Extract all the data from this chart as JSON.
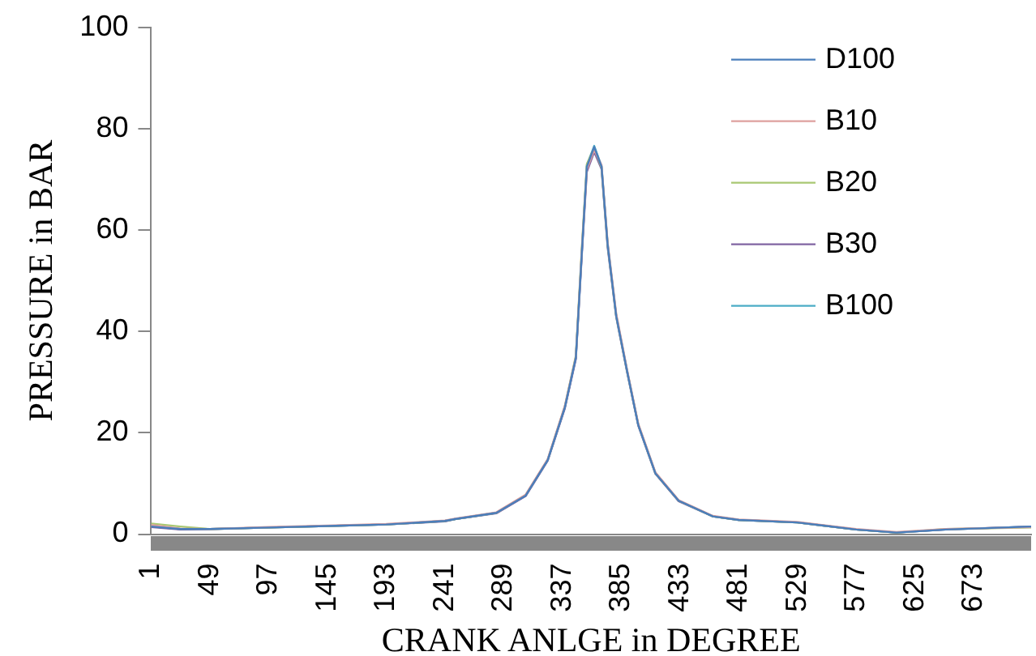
{
  "chart_data": {
    "type": "line",
    "xlabel": "CRANK ANLGE in DEGREE",
    "ylabel": "PRESSURE in BAR",
    "x": [
      1,
      25,
      49,
      97,
      145,
      193,
      241,
      250,
      283,
      307,
      325,
      339,
      348,
      353,
      357,
      363,
      369,
      374,
      381,
      390,
      399,
      413,
      432,
      460,
      481,
      529,
      577,
      610,
      650,
      720
    ],
    "series": [
      {
        "name": "D100",
        "color": "#4a7ebb",
        "values": [
          1.5,
          1.0,
          1.0,
          1.3,
          1.6,
          1.9,
          2.6,
          3.0,
          4.2,
          7.6,
          14.6,
          25,
          34.8,
          56,
          72.5,
          76.4,
          72.5,
          57,
          43,
          32,
          21.5,
          12,
          6.6,
          3.5,
          2.8,
          2.3,
          0.9,
          0.3,
          0.9,
          1.5
        ]
      },
      {
        "name": "B10",
        "color": "#dea09e",
        "values": [
          1.8,
          1.1,
          1.0,
          1.4,
          1.7,
          2.0,
          2.7,
          3.1,
          4.3,
          7.8,
          14.8,
          25.3,
          35,
          56.5,
          72,
          75.8,
          72.8,
          57.5,
          43.5,
          32.3,
          21.8,
          12.2,
          6.7,
          3.6,
          2.9,
          2.4,
          1.0,
          0.4,
          1.0,
          1.4
        ]
      },
      {
        "name": "B20",
        "color": "#a9c872",
        "values": [
          2.1,
          1.5,
          1.0,
          1.3,
          1.6,
          1.9,
          2.6,
          3.0,
          4.2,
          7.7,
          14.7,
          25.2,
          35.2,
          57,
          73,
          76.2,
          72.3,
          57,
          43,
          32,
          21.6,
          12,
          6.6,
          3.5,
          2.8,
          2.3,
          0.9,
          0.3,
          1.0,
          1.3
        ]
      },
      {
        "name": "B30",
        "color": "#8064a2",
        "values": [
          1.4,
          0.9,
          1.0,
          1.3,
          1.6,
          1.9,
          2.5,
          3.0,
          4.1,
          7.5,
          14.5,
          24.8,
          34.5,
          55.5,
          71.5,
          75.4,
          72,
          56.5,
          42.8,
          31.8,
          21.4,
          11.9,
          6.5,
          3.5,
          2.8,
          2.3,
          0.9,
          0.3,
          0.9,
          1.5
        ]
      },
      {
        "name": "B100",
        "color": "#4bacc6",
        "values": [
          1.5,
          1.0,
          1.0,
          1.3,
          1.6,
          1.9,
          2.6,
          3.0,
          4.2,
          7.6,
          14.6,
          25,
          34.8,
          56,
          72.8,
          76.6,
          72.6,
          57.2,
          43.2,
          32.1,
          21.6,
          12.1,
          6.6,
          3.5,
          2.8,
          2.3,
          0.9,
          0.3,
          0.9,
          1.5
        ]
      }
    ],
    "xlim": [
      1,
      720
    ],
    "xticks": [
      1,
      49,
      97,
      145,
      193,
      241,
      289,
      337,
      385,
      433,
      481,
      529,
      577,
      625,
      673
    ],
    "ylim": [
      0,
      100
    ],
    "yticks": [
      0,
      20,
      40,
      60,
      80,
      100
    ],
    "grid": false,
    "legend": "top right",
    "marker": "none",
    "line_style": "solid"
  }
}
